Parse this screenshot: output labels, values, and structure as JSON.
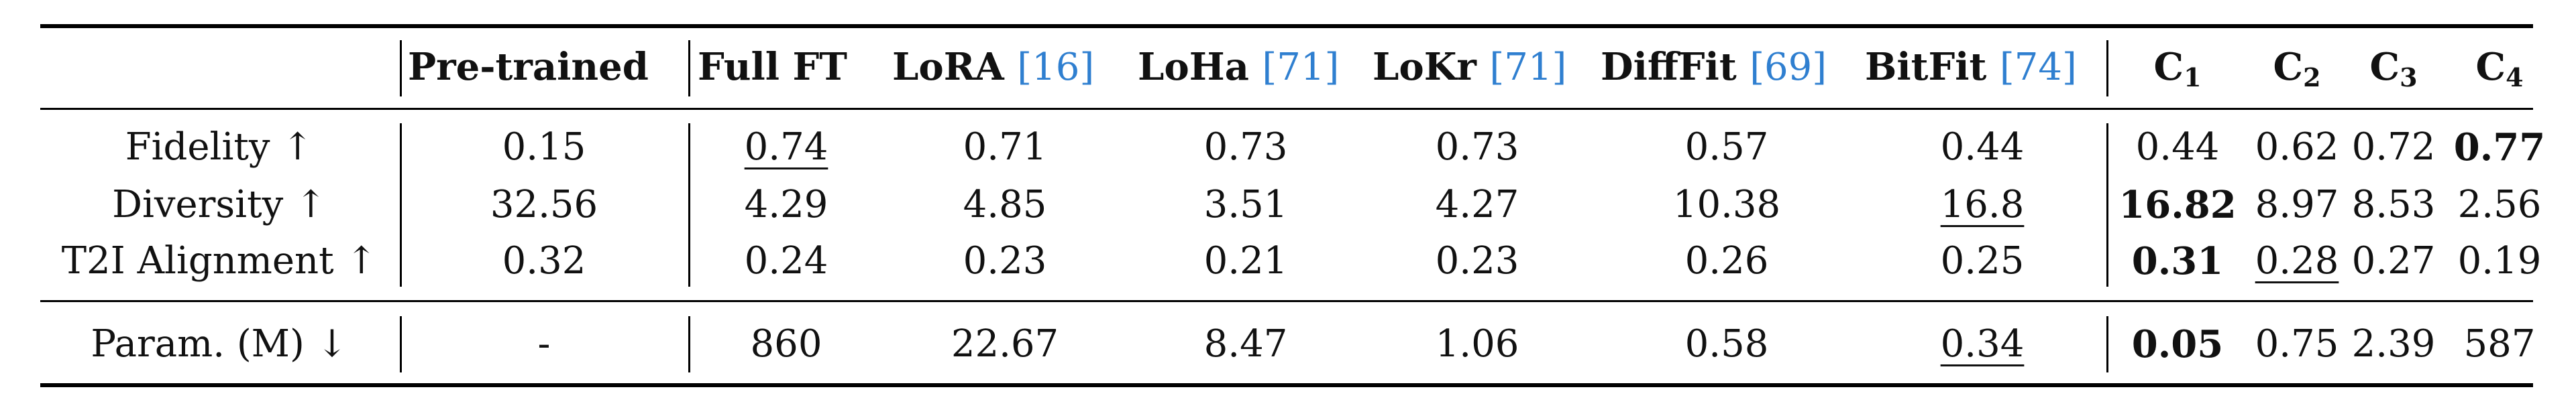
{
  "table": {
    "header": {
      "pretrained": "Pre-trained",
      "full_ft": "Full FT",
      "lora": "LoRA",
      "lora_cite": "[16]",
      "loha": "LoHa",
      "loha_cite": "[71]",
      "lokr": "LoKr",
      "lokr_cite": "[71]",
      "diffit": "DiffFit",
      "diffit_cite": "[69]",
      "bitfit": "BitFit",
      "bitfit_cite": "[74]",
      "c1": "C",
      "c1_sub": "1",
      "c2": "C",
      "c2_sub": "2",
      "c3": "C",
      "c3_sub": "3",
      "c4": "C",
      "c4_sub": "4"
    },
    "rows": {
      "fidelity": {
        "label": "Fidelity ↑",
        "pretrained": "0.15",
        "full_ft": "0.74",
        "lora": "0.71",
        "loha": "0.73",
        "lokr": "0.73",
        "diffit": "0.57",
        "bitfit": "0.44",
        "c1": "0.44",
        "c2": "0.62",
        "c3": "0.72",
        "c4": "0.77"
      },
      "diversity": {
        "label": "Diversity ↑",
        "pretrained": "32.56",
        "full_ft": "4.29",
        "lora": "4.85",
        "loha": "3.51",
        "lokr": "4.27",
        "diffit": "10.38",
        "bitfit": "16.8",
        "c1": "16.82",
        "c2": "8.97",
        "c3": "8.53",
        "c4": "2.56"
      },
      "alignment": {
        "label": "T2I Alignment ↑",
        "pretrained": "0.32",
        "full_ft": "0.24",
        "lora": "0.23",
        "loha": "0.21",
        "lokr": "0.23",
        "diffit": "0.26",
        "bitfit": "0.25",
        "c1": "0.31",
        "c2": "0.28",
        "c3": "0.27",
        "c4": "0.19"
      },
      "params": {
        "label": "Param. (M) ↓",
        "pretrained": "-",
        "full_ft": "860",
        "lora": "22.67",
        "loha": "8.47",
        "lokr": "1.06",
        "diffit": "0.58",
        "bitfit": "0.34",
        "c1": "0.05",
        "c2": "0.75",
        "c3": "2.39",
        "c4": "587"
      }
    }
  }
}
